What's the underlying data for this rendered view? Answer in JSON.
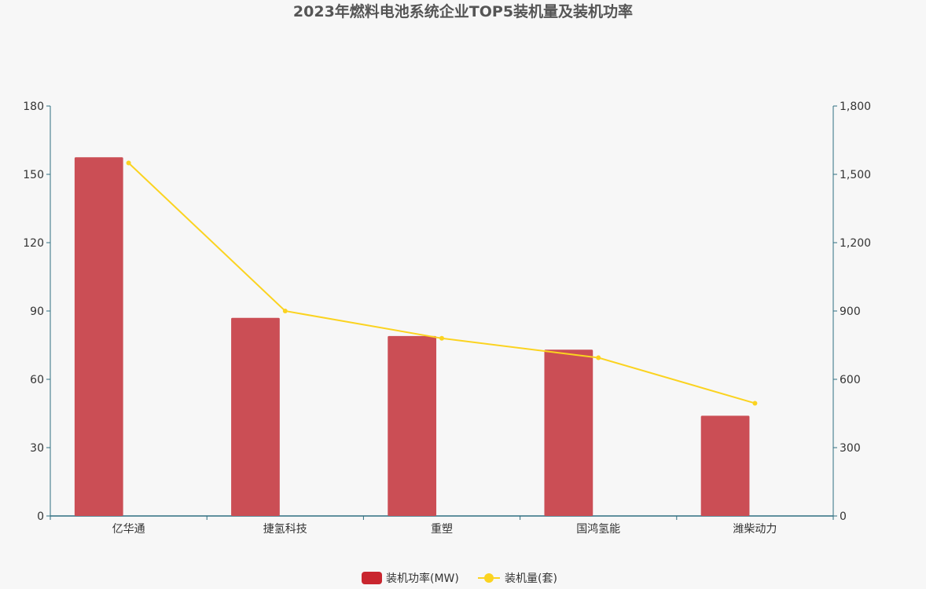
{
  "chart_data": {
    "type": "bar",
    "title": "2023年燃料电池系统企业TOP5装机量及装机功率",
    "categories": [
      "亿华通",
      "捷氢科技",
      "重塑",
      "国鸿氢能",
      "潍柴动力"
    ],
    "series": [
      {
        "name": "装机功率(MW)",
        "type": "bar",
        "axis": "left",
        "color": "#c9262f",
        "values": [
          157.5,
          87.0,
          79.0,
          73.0,
          44.0
        ]
      },
      {
        "name": "装机量(套)",
        "type": "line",
        "axis": "right",
        "color": "#fbd320",
        "values": [
          1550,
          900,
          780,
          695,
          495
        ]
      }
    ],
    "y_left": {
      "min": 0,
      "max": 180,
      "ticks": [
        0,
        30,
        60,
        90,
        120,
        150,
        180
      ],
      "tick_labels": [
        "0",
        "30",
        "60",
        "90",
        "120",
        "150",
        "180"
      ]
    },
    "y_right": {
      "min": 0,
      "max": 1800,
      "ticks": [
        0,
        300,
        600,
        900,
        1200,
        1500,
        1800
      ],
      "tick_labels": [
        "0",
        "300",
        "600",
        "900",
        "1,200",
        "1,500",
        "1,800"
      ]
    },
    "grid": false,
    "legend_position": "bottom-center",
    "axis_color": "#2f6f80",
    "bar_render_color": "#cb4e55"
  }
}
